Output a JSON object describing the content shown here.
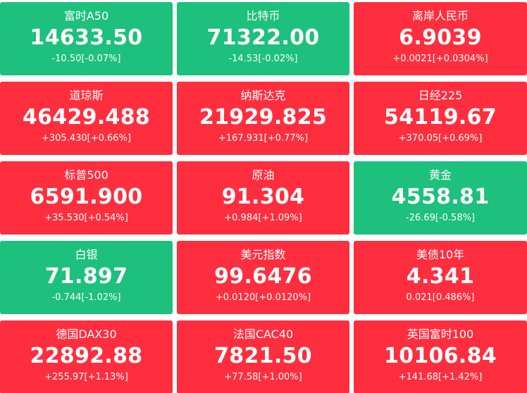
{
  "colors": {
    "up": "#fe2e3e",
    "down": "#1dc07c",
    "text": "#ffffff"
  },
  "tiles": [
    {
      "name": "富时A50",
      "price": "14633.50",
      "change": "-10.50[-0.07%]",
      "trend": "down"
    },
    {
      "name": "比特币",
      "price": "71322.00",
      "change": "-14.53[-0.02%]",
      "trend": "down"
    },
    {
      "name": "离岸人民币",
      "price": "6.9039",
      "change": "+0.0021[+0.0304%]",
      "trend": "up"
    },
    {
      "name": "道琼斯",
      "price": "46429.488",
      "change": "+305.430[+0.66%]",
      "trend": "up"
    },
    {
      "name": "纳斯达克",
      "price": "21929.825",
      "change": "+167.931[+0.77%]",
      "trend": "up"
    },
    {
      "name": "日经225",
      "price": "54119.67",
      "change": "+370.05[+0.69%]",
      "trend": "up"
    },
    {
      "name": "标普500",
      "price": "6591.900",
      "change": "+35.530[+0.54%]",
      "trend": "up"
    },
    {
      "name": "原油",
      "price": "91.304",
      "change": "+0.984[+1.09%]",
      "trend": "up"
    },
    {
      "name": "黄金",
      "price": "4558.81",
      "change": "-26.69[-0.58%]",
      "trend": "down"
    },
    {
      "name": "白银",
      "price": "71.897",
      "change": "-0.744[-1.02%]",
      "trend": "down"
    },
    {
      "name": "美元指数",
      "price": "99.6476",
      "change": "+0.0120[+0.0120%]",
      "trend": "up"
    },
    {
      "name": "美债10年",
      "price": "4.341",
      "change": "0.021[0.486%]",
      "trend": "up"
    },
    {
      "name": "德国DAX30",
      "price": "22892.88",
      "change": "+255.97[+1.13%]",
      "trend": "up"
    },
    {
      "name": "法国CAC40",
      "price": "7821.50",
      "change": "+77.58[+1.00%]",
      "trend": "up"
    },
    {
      "name": "英国富时100",
      "price": "10106.84",
      "change": "+141.68[+1.42%]",
      "trend": "up"
    }
  ]
}
